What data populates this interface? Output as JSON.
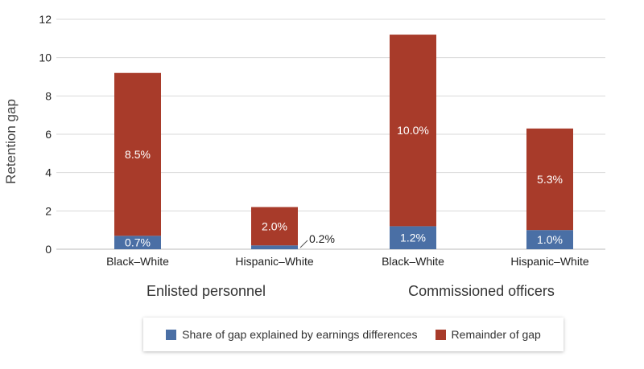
{
  "chart_data": {
    "type": "bar",
    "stacked": true,
    "title": "",
    "xlabel": "",
    "ylabel": "Retention gap",
    "ylim": [
      0,
      12
    ],
    "yticks": [
      0,
      2,
      4,
      6,
      8,
      10,
      12
    ],
    "grid": true,
    "legend_position": "bottom",
    "groups": [
      {
        "label": "Enlisted personnel",
        "categories": [
          "Black–White",
          "Hispanic–White"
        ]
      },
      {
        "label": "Commissioned officers",
        "categories": [
          "Black–White",
          "Hispanic–White"
        ]
      }
    ],
    "categories": [
      "Black–White",
      "Hispanic–White",
      "Black–White",
      "Hispanic–White"
    ],
    "series": [
      {
        "name": "Share of gap explained by earnings differences",
        "color": "#4a6fa5",
        "values": [
          0.7,
          0.2,
          1.2,
          1.0
        ],
        "labels": [
          "0.7%",
          "0.2%",
          "1.2%",
          "1.0%"
        ]
      },
      {
        "name": "Remainder of gap",
        "color": "#a83b2a",
        "values": [
          8.5,
          2.0,
          10.0,
          5.3
        ],
        "labels": [
          "8.5%",
          "2.0%",
          "10.0%",
          "5.3%"
        ]
      }
    ]
  }
}
